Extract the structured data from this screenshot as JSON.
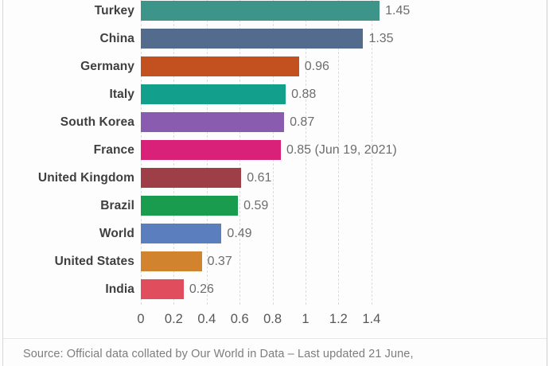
{
  "chart_data": {
    "type": "bar",
    "orientation": "horizontal",
    "categories": [
      "Turkey",
      "China",
      "Germany",
      "Italy",
      "South Korea",
      "France",
      "United Kingdom",
      "Brazil",
      "World",
      "United States",
      "India"
    ],
    "values": [
      1.45,
      1.35,
      0.96,
      0.88,
      0.87,
      0.85,
      0.61,
      0.59,
      0.49,
      0.37,
      0.26
    ],
    "value_labels": [
      "1.45",
      "1.35",
      "0.96",
      "0.88",
      "0.87",
      "0.85 (Jun 19, 2021)",
      "0.61",
      "0.59",
      "0.49",
      "0.37",
      "0.26"
    ],
    "bar_colors": [
      "#3d9589",
      "#536b8c",
      "#c2511f",
      "#12a08d",
      "#8a5cb0",
      "#d92179",
      "#9e3f48",
      "#1a9c4e",
      "#5b7fbe",
      "#d2832e",
      "#e04e5e"
    ],
    "title": "",
    "xlabel": "",
    "ylabel": "",
    "xlim": [
      0,
      1.5
    ],
    "x_ticks": [
      "0",
      "0.2",
      "0.4",
      "0.6",
      "0.8",
      "1",
      "1.2",
      "1.4"
    ],
    "x_tick_values": [
      0,
      0.2,
      0.4,
      0.6,
      0.8,
      1,
      1.2,
      1.4
    ],
    "grid": "vertical-dashed",
    "legend": "none"
  },
  "footer": {
    "source_text": "Source: Official data collated by Our World in Data – Last updated 21 June,"
  }
}
